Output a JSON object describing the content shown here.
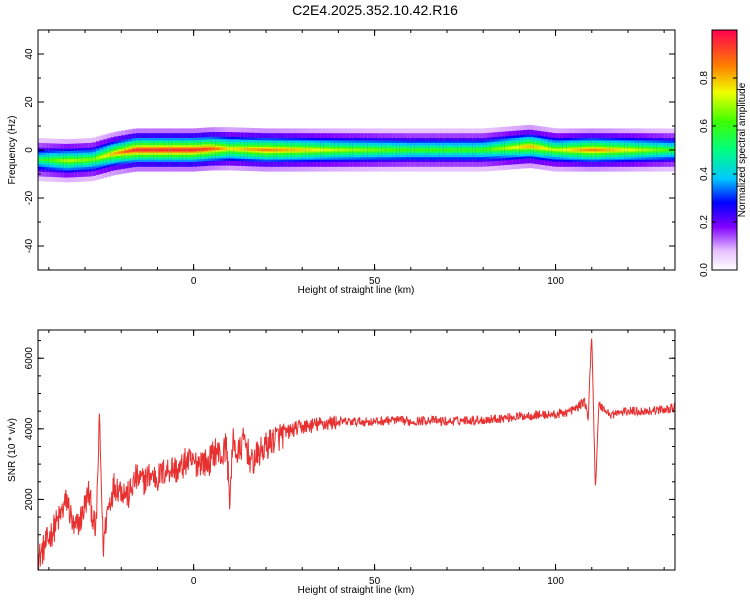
{
  "title": "C2E4.2025.352.10.42.R16",
  "chart_data": [
    {
      "type": "heatmap",
      "xlabel": "Height of straight line (km)",
      "ylabel": "Frequency (Hz)",
      "xlim": [
        -43,
        133
      ],
      "ylim": [
        -50,
        50
      ],
      "xticks": [
        0,
        50,
        100
      ],
      "yticks": [
        -40,
        -20,
        0,
        20,
        40
      ],
      "ridge": [
        {
          "x": -43,
          "f": -4,
          "a": 0.55
        },
        {
          "x": -35,
          "f": -4.5,
          "a": 0.7
        },
        {
          "x": -28,
          "f": -4,
          "a": 0.65
        },
        {
          "x": -22,
          "f": -1.5,
          "a": 0.8
        },
        {
          "x": -16,
          "f": 0,
          "a": 0.95
        },
        {
          "x": 0,
          "f": 0,
          "a": 0.95
        },
        {
          "x": 5,
          "f": 0.5,
          "a": 0.9
        },
        {
          "x": 10,
          "f": 0.5,
          "a": 0.75
        },
        {
          "x": 20,
          "f": 0,
          "a": 0.85
        },
        {
          "x": 40,
          "f": 0,
          "a": 0.7
        },
        {
          "x": 60,
          "f": 0,
          "a": 0.6
        },
        {
          "x": 80,
          "f": 0,
          "a": 0.6
        },
        {
          "x": 93,
          "f": 1.5,
          "a": 0.8
        },
        {
          "x": 100,
          "f": 0,
          "a": 0.7
        },
        {
          "x": 110,
          "f": 0,
          "a": 0.85
        },
        {
          "x": 133,
          "f": 0,
          "a": 0.6
        }
      ]
    },
    {
      "type": "colorbar",
      "ylabel": "Normalized spectral amplitude",
      "ylim": [
        0,
        1
      ],
      "yticks": [
        "0.0",
        "0.2",
        "0.4",
        "0.6",
        "0.8"
      ]
    },
    {
      "type": "line",
      "xlabel": "Height of straight line (km)",
      "ylabel": "SNR (10 * v/v)",
      "xlim": [
        -43,
        133
      ],
      "ylim": [
        0,
        6800
      ],
      "xticks": [
        0,
        50,
        100
      ],
      "yticks": [
        2000,
        4000,
        6000
      ],
      "series_color": "#e83030",
      "x": [
        -43,
        -40,
        -37,
        -35,
        -33,
        -31,
        -29,
        -27,
        -26,
        -25,
        -24,
        -22,
        -20,
        -18,
        -16,
        -14,
        -12,
        -10,
        -8,
        -6,
        -4,
        -2,
        0,
        2,
        4,
        6,
        8,
        9,
        10,
        11,
        12,
        14,
        16,
        18,
        20,
        22,
        24,
        26,
        28,
        30,
        33,
        36,
        40,
        45,
        50,
        55,
        60,
        65,
        70,
        75,
        80,
        85,
        90,
        95,
        100,
        104,
        106,
        108,
        109,
        110,
        111,
        112,
        115,
        120,
        125,
        130,
        133
      ],
      "y": [
        300,
        900,
        1500,
        2000,
        1100,
        1500,
        2200,
        1000,
        4300,
        600,
        1600,
        2400,
        2300,
        2100,
        2600,
        2500,
        2700,
        2600,
        2800,
        2900,
        2800,
        3100,
        3000,
        3100,
        3000,
        3400,
        3200,
        3600,
        2000,
        3800,
        3200,
        3700,
        3000,
        3300,
        3500,
        3700,
        3800,
        3900,
        4000,
        4050,
        4100,
        4150,
        4200,
        4200,
        4200,
        4250,
        4200,
        4250,
        4200,
        4250,
        4250,
        4300,
        4350,
        4400,
        4400,
        4500,
        4600,
        4800,
        4300,
        6700,
        2300,
        4700,
        4400,
        4500,
        4500,
        4550,
        4600
      ]
    }
  ]
}
